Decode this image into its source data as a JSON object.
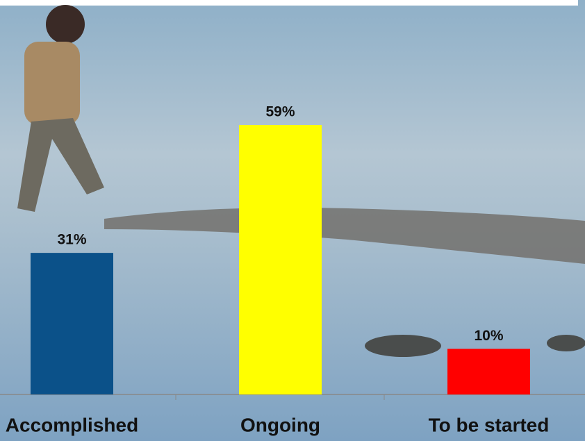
{
  "chart_data": {
    "type": "bar",
    "categories": [
      "Accomplished",
      "Ongoing",
      "To be started"
    ],
    "values": [
      31,
      59,
      10
    ],
    "value_labels": [
      "31%",
      "59%",
      "10%"
    ],
    "colors": [
      "#0b5189",
      "#ffff00",
      "#ff0000"
    ]
  }
}
